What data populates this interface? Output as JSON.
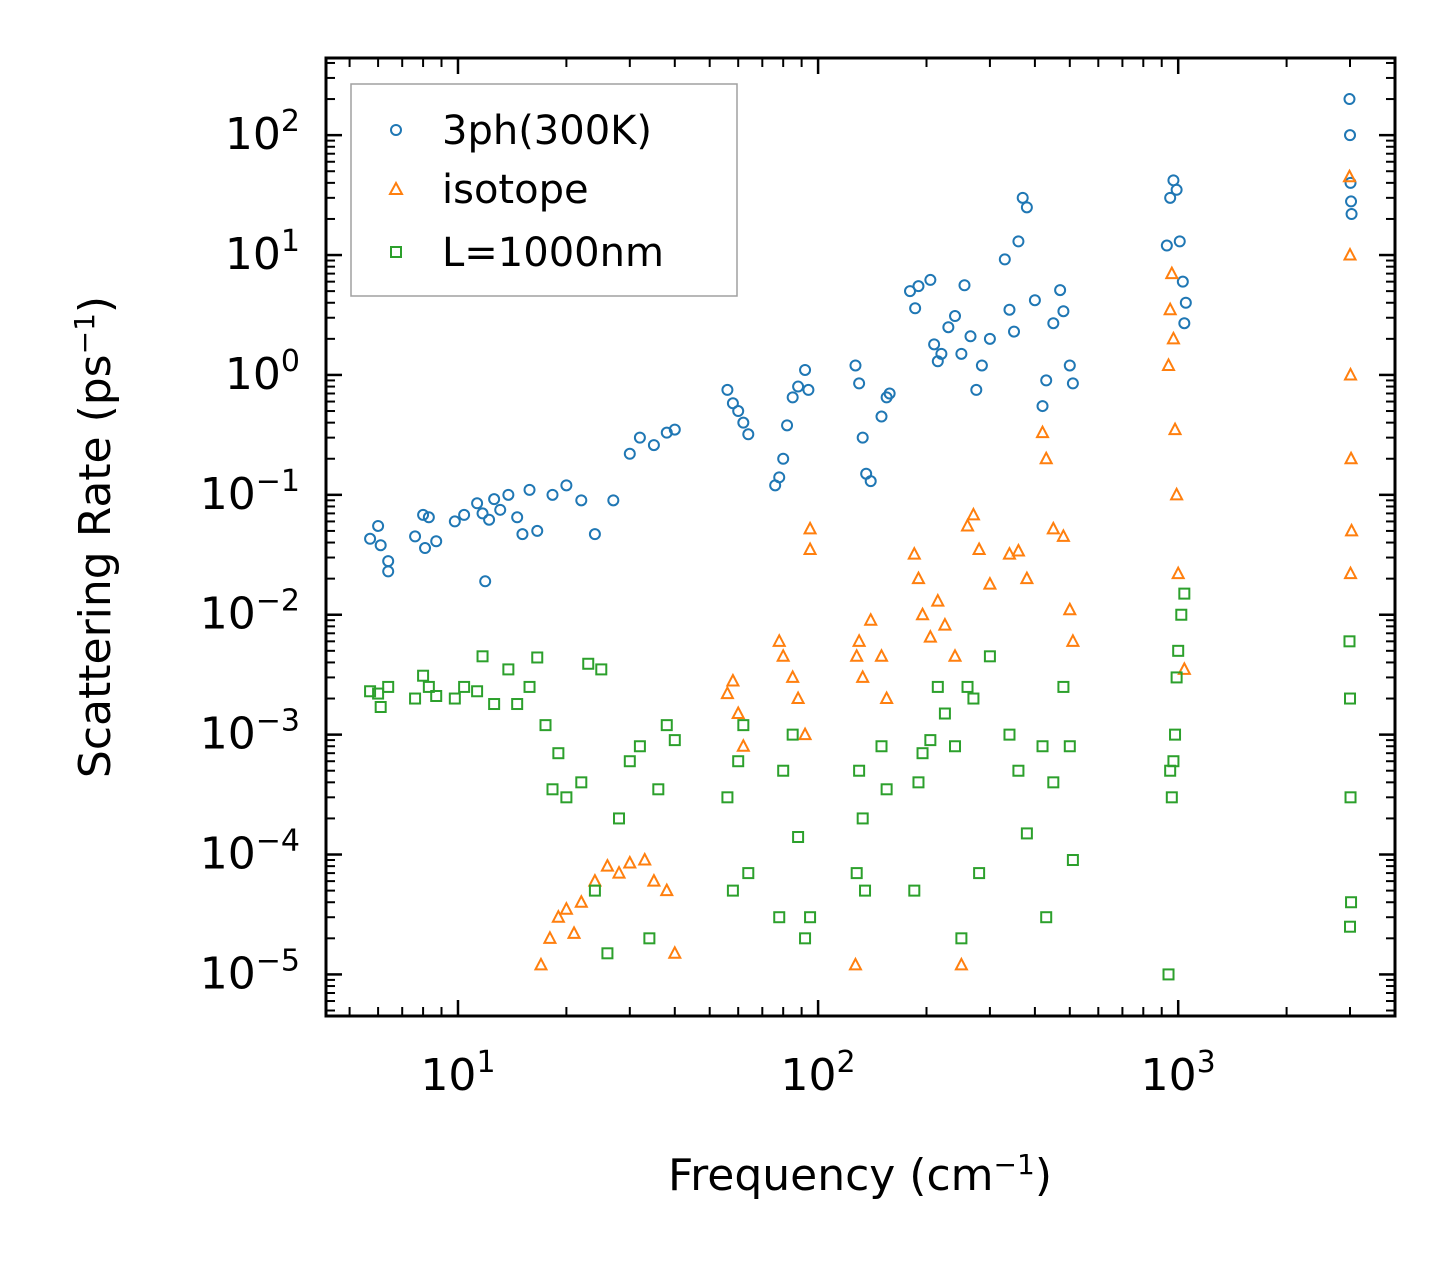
{
  "chart_data": {
    "type": "scatter",
    "xscale": "log",
    "yscale": "log",
    "xlim": [
      4.3,
      4000
    ],
    "ylim": [
      4.5e-06,
      440
    ],
    "xlabel": "Frequency (cm",
    "xlabel_sup": "−1",
    "xlabel_end": ")",
    "ylabel": "Scattering Rate (ps",
    "ylabel_sup": "−1",
    "ylabel_end": ")",
    "x_ticks": [
      {
        "value": 10,
        "base": "10",
        "exp": "1"
      },
      {
        "value": 100,
        "base": "10",
        "exp": "2"
      },
      {
        "value": 1000,
        "base": "10",
        "exp": "3"
      }
    ],
    "y_ticks": [
      {
        "value": 1e-05,
        "base": "10",
        "exp": "−5"
      },
      {
        "value": 0.0001,
        "base": "10",
        "exp": "−4"
      },
      {
        "value": 0.001,
        "base": "10",
        "exp": "−3"
      },
      {
        "value": 0.01,
        "base": "10",
        "exp": "−2"
      },
      {
        "value": 0.1,
        "base": "10",
        "exp": "−1"
      },
      {
        "value": 1,
        "base": "10",
        "exp": "0"
      },
      {
        "value": 10,
        "base": "10",
        "exp": "1"
      },
      {
        "value": 100,
        "base": "10",
        "exp": "2"
      }
    ],
    "legend": {
      "position": "top-left",
      "entries": [
        "3ph(300K)",
        "isotope",
        "L=1000nm"
      ]
    },
    "series": [
      {
        "name": "3ph(300K)",
        "marker": "circle",
        "color": "#1f77b4",
        "points": [
          [
            5.7,
            0.043
          ],
          [
            6.0,
            0.055
          ],
          [
            6.1,
            0.038
          ],
          [
            6.4,
            0.028
          ],
          [
            6.4,
            0.023
          ],
          [
            7.6,
            0.045
          ],
          [
            8.0,
            0.068
          ],
          [
            8.3,
            0.065
          ],
          [
            8.1,
            0.036
          ],
          [
            8.7,
            0.041
          ],
          [
            9.8,
            0.06
          ],
          [
            10.4,
            0.068
          ],
          [
            11.3,
            0.085
          ],
          [
            11.7,
            0.07
          ],
          [
            11.9,
            0.019
          ],
          [
            12.2,
            0.062
          ],
          [
            12.6,
            0.092
          ],
          [
            13.1,
            0.075
          ],
          [
            13.8,
            0.1
          ],
          [
            14.6,
            0.065
          ],
          [
            15.1,
            0.047
          ],
          [
            15.8,
            0.11
          ],
          [
            16.6,
            0.05
          ],
          [
            18.3,
            0.1
          ],
          [
            20.0,
            0.12
          ],
          [
            22.0,
            0.09
          ],
          [
            24.0,
            0.047
          ],
          [
            27.0,
            0.09
          ],
          [
            30.0,
            0.22
          ],
          [
            32.0,
            0.3
          ],
          [
            35.0,
            0.26
          ],
          [
            38.0,
            0.33
          ],
          [
            40.0,
            0.35
          ],
          [
            56.0,
            0.75
          ],
          [
            58.0,
            0.58
          ],
          [
            60.0,
            0.5
          ],
          [
            62.0,
            0.4
          ],
          [
            64.0,
            0.32
          ],
          [
            76.0,
            0.12
          ],
          [
            78.0,
            0.14
          ],
          [
            80.0,
            0.2
          ],
          [
            82.0,
            0.38
          ],
          [
            85.0,
            0.65
          ],
          [
            88.0,
            0.8
          ],
          [
            92.0,
            1.1
          ],
          [
            94.0,
            0.75
          ],
          [
            127.0,
            1.2
          ],
          [
            130.0,
            0.85
          ],
          [
            133.0,
            0.3
          ],
          [
            136.0,
            0.15
          ],
          [
            140.0,
            0.13
          ],
          [
            150.0,
            0.45
          ],
          [
            155.0,
            0.65
          ],
          [
            158.0,
            0.7
          ],
          [
            180.0,
            5.0
          ],
          [
            186.0,
            3.6
          ],
          [
            190.0,
            5.5
          ],
          [
            205.0,
            6.2
          ],
          [
            210.0,
            1.8
          ],
          [
            215.0,
            1.3
          ],
          [
            220.0,
            1.5
          ],
          [
            230.0,
            2.5
          ],
          [
            240.0,
            3.1
          ],
          [
            250.0,
            1.5
          ],
          [
            255.0,
            5.6
          ],
          [
            265.0,
            2.1
          ],
          [
            275.0,
            0.75
          ],
          [
            285.0,
            1.2
          ],
          [
            300.0,
            2.0
          ],
          [
            330.0,
            9.2
          ],
          [
            340.0,
            3.5
          ],
          [
            350.0,
            2.3
          ],
          [
            360.0,
            13.0
          ],
          [
            370.0,
            30.0
          ],
          [
            380.0,
            25.0
          ],
          [
            400.0,
            4.2
          ],
          [
            420.0,
            0.55
          ],
          [
            430.0,
            0.9
          ],
          [
            450.0,
            2.7
          ],
          [
            470.0,
            5.1
          ],
          [
            480.0,
            3.4
          ],
          [
            500.0,
            1.2
          ],
          [
            510.0,
            0.85
          ],
          [
            930.0,
            12.0
          ],
          [
            950.0,
            30.0
          ],
          [
            970.0,
            42.0
          ],
          [
            990.0,
            35.0
          ],
          [
            1010.0,
            13.0
          ],
          [
            1030.0,
            6.0
          ],
          [
            1040.0,
            2.7
          ],
          [
            1050.0,
            4.0
          ],
          [
            2990.0,
            200.0
          ],
          [
            3000.0,
            100.0
          ],
          [
            3010.0,
            40.0
          ],
          [
            3020.0,
            28.0
          ],
          [
            3030.0,
            22.0
          ]
        ]
      },
      {
        "name": "isotope",
        "marker": "triangle",
        "color": "#ff7f0e",
        "points": [
          [
            17.0,
            1.2e-05
          ],
          [
            18.0,
            2e-05
          ],
          [
            19.0,
            3e-05
          ],
          [
            20.0,
            3.5e-05
          ],
          [
            21.0,
            2.2e-05
          ],
          [
            22.0,
            4e-05
          ],
          [
            24.0,
            6e-05
          ],
          [
            26.0,
            8e-05
          ],
          [
            28.0,
            7e-05
          ],
          [
            30.0,
            8.5e-05
          ],
          [
            33.0,
            9e-05
          ],
          [
            35.0,
            6e-05
          ],
          [
            38.0,
            5e-05
          ],
          [
            40.0,
            1.5e-05
          ],
          [
            56.0,
            0.0022
          ],
          [
            58.0,
            0.0028
          ],
          [
            60.0,
            0.0015
          ],
          [
            62.0,
            0.0008
          ],
          [
            78.0,
            0.006
          ],
          [
            80.0,
            0.0045
          ],
          [
            85.0,
            0.003
          ],
          [
            88.0,
            0.002
          ],
          [
            92.0,
            0.001
          ],
          [
            95.0,
            0.052
          ],
          [
            95.0,
            0.035
          ],
          [
            127.0,
            1.2e-05
          ],
          [
            128.0,
            0.0045
          ],
          [
            130.0,
            0.006
          ],
          [
            133.0,
            0.003
          ],
          [
            140.0,
            0.009
          ],
          [
            150.0,
            0.0045
          ],
          [
            155.0,
            0.002
          ],
          [
            185.0,
            0.032
          ],
          [
            190.0,
            0.02
          ],
          [
            195.0,
            0.01
          ],
          [
            205.0,
            0.0065
          ],
          [
            215.0,
            0.013
          ],
          [
            225.0,
            0.0082
          ],
          [
            240.0,
            0.0045
          ],
          [
            250.0,
            1.2e-05
          ],
          [
            260.0,
            0.055
          ],
          [
            270.0,
            0.068
          ],
          [
            280.0,
            0.035
          ],
          [
            300.0,
            0.018
          ],
          [
            340.0,
            0.032
          ],
          [
            360.0,
            0.034
          ],
          [
            380.0,
            0.02
          ],
          [
            420.0,
            0.33
          ],
          [
            430.0,
            0.2
          ],
          [
            450.0,
            0.052
          ],
          [
            480.0,
            0.045
          ],
          [
            500.0,
            0.011
          ],
          [
            510.0,
            0.006
          ],
          [
            940.0,
            1.2
          ],
          [
            950.0,
            3.5
          ],
          [
            960.0,
            7.0
          ],
          [
            970.0,
            2.0
          ],
          [
            980.0,
            0.35
          ],
          [
            990.0,
            0.1
          ],
          [
            1000.0,
            0.022
          ],
          [
            1040.0,
            0.0035
          ],
          [
            2990.0,
            45.0
          ],
          [
            3000.0,
            10.0
          ],
          [
            3010.0,
            1.0
          ],
          [
            3020.0,
            0.2
          ],
          [
            3030.0,
            0.05
          ],
          [
            3010.0,
            0.022
          ]
        ]
      },
      {
        "name": "L=1000nm",
        "marker": "square",
        "color": "#2ca02c",
        "points": [
          [
            5.7,
            0.0023
          ],
          [
            6.0,
            0.0022
          ],
          [
            6.1,
            0.0017
          ],
          [
            6.4,
            0.0025
          ],
          [
            7.6,
            0.002
          ],
          [
            8.0,
            0.0031
          ],
          [
            8.3,
            0.0025
          ],
          [
            8.7,
            0.0021
          ],
          [
            9.8,
            0.002
          ],
          [
            10.4,
            0.0025
          ],
          [
            11.3,
            0.0023
          ],
          [
            11.7,
            0.0045
          ],
          [
            12.6,
            0.0018
          ],
          [
            13.8,
            0.0035
          ],
          [
            14.6,
            0.0018
          ],
          [
            15.8,
            0.0025
          ],
          [
            16.6,
            0.0044
          ],
          [
            17.5,
            0.0012
          ],
          [
            18.3,
            0.00035
          ],
          [
            19.0,
            0.0007
          ],
          [
            20.0,
            0.0003
          ],
          [
            22.0,
            0.0004
          ],
          [
            23.0,
            0.0039
          ],
          [
            24.0,
            5e-05
          ],
          [
            25.0,
            0.0035
          ],
          [
            26.0,
            1.5e-05
          ],
          [
            28.0,
            0.0002
          ],
          [
            30.0,
            0.0006
          ],
          [
            32.0,
            0.0008
          ],
          [
            34.0,
            2e-05
          ],
          [
            36.0,
            0.00035
          ],
          [
            38.0,
            0.0012
          ],
          [
            40.0,
            0.0009
          ],
          [
            56.0,
            0.0003
          ],
          [
            58.0,
            5e-05
          ],
          [
            60.0,
            0.0006
          ],
          [
            62.0,
            0.0012
          ],
          [
            64.0,
            7e-05
          ],
          [
            78.0,
            3e-05
          ],
          [
            80.0,
            0.0005
          ],
          [
            85.0,
            0.001
          ],
          [
            88.0,
            0.00014
          ],
          [
            92.0,
            2e-05
          ],
          [
            95.0,
            3e-05
          ],
          [
            128.0,
            7e-05
          ],
          [
            130.0,
            0.0005
          ],
          [
            133.0,
            0.0002
          ],
          [
            135.0,
            5e-05
          ],
          [
            150.0,
            0.0008
          ],
          [
            155.0,
            0.00035
          ],
          [
            185.0,
            5e-05
          ],
          [
            190.0,
            0.0004
          ],
          [
            195.0,
            0.0007
          ],
          [
            205.0,
            0.0009
          ],
          [
            215.0,
            0.0025
          ],
          [
            225.0,
            0.0015
          ],
          [
            240.0,
            0.0008
          ],
          [
            250.0,
            2e-05
          ],
          [
            260.0,
            0.0025
          ],
          [
            270.0,
            0.002
          ],
          [
            280.0,
            7e-05
          ],
          [
            300.0,
            0.0045
          ],
          [
            340.0,
            0.001
          ],
          [
            360.0,
            0.0005
          ],
          [
            380.0,
            0.00015
          ],
          [
            420.0,
            0.0008
          ],
          [
            430.0,
            3e-05
          ],
          [
            450.0,
            0.0004
          ],
          [
            480.0,
            0.0025
          ],
          [
            500.0,
            0.0008
          ],
          [
            510.0,
            9e-05
          ],
          [
            940.0,
            1e-05
          ],
          [
            950.0,
            0.0005
          ],
          [
            960.0,
            0.0003
          ],
          [
            970.0,
            0.0006
          ],
          [
            980.0,
            0.001
          ],
          [
            990.0,
            0.003
          ],
          [
            1000.0,
            0.005
          ],
          [
            1020.0,
            0.01
          ],
          [
            1040.0,
            0.015
          ],
          [
            2990.0,
            0.006
          ],
          [
            3000.0,
            0.002
          ],
          [
            3010.0,
            0.0003
          ],
          [
            3020.0,
            4e-05
          ],
          [
            3000.0,
            2.5e-05
          ]
        ]
      }
    ]
  }
}
